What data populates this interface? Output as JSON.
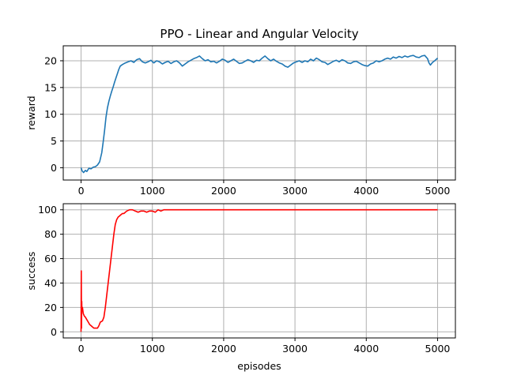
{
  "chart_data": [
    {
      "type": "line",
      "title": "PPO - Linear and Angular Velocity",
      "xlabel": "",
      "ylabel": "reward",
      "xlim": [
        -250,
        5250
      ],
      "ylim": [
        -2.3,
        22.8
      ],
      "xticks": [
        0,
        1000,
        2000,
        3000,
        4000,
        5000
      ],
      "yticks": [
        0,
        5,
        10,
        15,
        20
      ],
      "grid": true,
      "series": [
        {
          "color": "#1f77b4",
          "points": [
            [
              0,
              0
            ],
            [
              15,
              -0.6
            ],
            [
              35,
              -0.9
            ],
            [
              60,
              -0.5
            ],
            [
              80,
              -0.7
            ],
            [
              110,
              -0.1
            ],
            [
              140,
              -0.2
            ],
            [
              170,
              0.1
            ],
            [
              200,
              0.2
            ],
            [
              230,
              0.5
            ],
            [
              260,
              1.1
            ],
            [
              290,
              2.8
            ],
            [
              310,
              4.8
            ],
            [
              330,
              7.0
            ],
            [
              350,
              9.5
            ],
            [
              370,
              11.2
            ],
            [
              390,
              12.4
            ],
            [
              410,
              13.4
            ],
            [
              430,
              14.3
            ],
            [
              450,
              15.1
            ],
            [
              470,
              16.0
            ],
            [
              490,
              16.8
            ],
            [
              510,
              17.6
            ],
            [
              530,
              18.4
            ],
            [
              550,
              19.0
            ],
            [
              580,
              19.3
            ],
            [
              620,
              19.6
            ],
            [
              660,
              19.8
            ],
            [
              700,
              20.0
            ],
            [
              740,
              19.7
            ],
            [
              780,
              20.2
            ],
            [
              820,
              20.4
            ],
            [
              860,
              19.8
            ],
            [
              900,
              19.6
            ],
            [
              940,
              19.8
            ],
            [
              980,
              20.1
            ],
            [
              1020,
              19.6
            ],
            [
              1060,
              20.0
            ],
            [
              1100,
              19.8
            ],
            [
              1140,
              19.4
            ],
            [
              1180,
              19.7
            ],
            [
              1220,
              19.9
            ],
            [
              1260,
              19.5
            ],
            [
              1300,
              19.8
            ],
            [
              1340,
              20.0
            ],
            [
              1380,
              19.6
            ],
            [
              1420,
              19.0
            ],
            [
              1460,
              19.4
            ],
            [
              1500,
              19.8
            ],
            [
              1540,
              20.1
            ],
            [
              1580,
              20.4
            ],
            [
              1620,
              20.6
            ],
            [
              1660,
              20.9
            ],
            [
              1700,
              20.4
            ],
            [
              1740,
              20.0
            ],
            [
              1780,
              20.2
            ],
            [
              1820,
              19.8
            ],
            [
              1860,
              19.9
            ],
            [
              1900,
              19.6
            ],
            [
              1940,
              19.9
            ],
            [
              1980,
              20.3
            ],
            [
              2020,
              20.1
            ],
            [
              2060,
              19.7
            ],
            [
              2100,
              20.0
            ],
            [
              2140,
              20.3
            ],
            [
              2180,
              19.9
            ],
            [
              2220,
              19.5
            ],
            [
              2260,
              19.6
            ],
            [
              2300,
              19.9
            ],
            [
              2340,
              20.2
            ],
            [
              2380,
              20.0
            ],
            [
              2420,
              19.7
            ],
            [
              2460,
              20.1
            ],
            [
              2500,
              20.0
            ],
            [
              2540,
              20.5
            ],
            [
              2580,
              20.9
            ],
            [
              2620,
              20.4
            ],
            [
              2660,
              20.0
            ],
            [
              2700,
              20.3
            ],
            [
              2740,
              19.9
            ],
            [
              2780,
              19.6
            ],
            [
              2820,
              19.4
            ],
            [
              2860,
              19.0
            ],
            [
              2900,
              18.8
            ],
            [
              2940,
              19.2
            ],
            [
              2980,
              19.6
            ],
            [
              3020,
              19.8
            ],
            [
              3060,
              20.0
            ],
            [
              3100,
              19.7
            ],
            [
              3140,
              20.0
            ],
            [
              3180,
              19.8
            ],
            [
              3220,
              20.3
            ],
            [
              3260,
              20.0
            ],
            [
              3300,
              20.5
            ],
            [
              3340,
              20.2
            ],
            [
              3380,
              19.8
            ],
            [
              3420,
              19.7
            ],
            [
              3460,
              19.3
            ],
            [
              3500,
              19.6
            ],
            [
              3540,
              19.9
            ],
            [
              3580,
              20.1
            ],
            [
              3620,
              19.8
            ],
            [
              3660,
              20.2
            ],
            [
              3700,
              20.0
            ],
            [
              3740,
              19.6
            ],
            [
              3780,
              19.5
            ],
            [
              3820,
              19.8
            ],
            [
              3860,
              19.9
            ],
            [
              3900,
              19.6
            ],
            [
              3940,
              19.3
            ],
            [
              3980,
              19.1
            ],
            [
              4020,
              19.0
            ],
            [
              4060,
              19.4
            ],
            [
              4100,
              19.6
            ],
            [
              4140,
              20.0
            ],
            [
              4180,
              19.8
            ],
            [
              4220,
              20.0
            ],
            [
              4260,
              20.3
            ],
            [
              4300,
              20.5
            ],
            [
              4340,
              20.3
            ],
            [
              4380,
              20.7
            ],
            [
              4420,
              20.5
            ],
            [
              4460,
              20.8
            ],
            [
              4500,
              20.6
            ],
            [
              4540,
              20.9
            ],
            [
              4580,
              20.7
            ],
            [
              4620,
              20.9
            ],
            [
              4660,
              21.0
            ],
            [
              4700,
              20.7
            ],
            [
              4740,
              20.6
            ],
            [
              4780,
              20.9
            ],
            [
              4820,
              21.0
            ],
            [
              4860,
              20.4
            ],
            [
              4880,
              19.6
            ],
            [
              4900,
              19.2
            ],
            [
              4930,
              19.7
            ],
            [
              4960,
              20.0
            ],
            [
              5000,
              20.5
            ]
          ]
        }
      ]
    },
    {
      "type": "line",
      "title": "",
      "xlabel": "episodes",
      "ylabel": "success",
      "xlim": [
        -250,
        5250
      ],
      "ylim": [
        -5,
        105
      ],
      "xticks": [
        0,
        1000,
        2000,
        3000,
        4000,
        5000
      ],
      "yticks": [
        0,
        20,
        40,
        60,
        80,
        100
      ],
      "grid": true,
      "series": [
        {
          "color": "#ff0000",
          "points": [
            [
              0,
              0
            ],
            [
              3,
              50
            ],
            [
              6,
              3
            ],
            [
              9,
              25
            ],
            [
              12,
              18
            ],
            [
              20,
              20
            ],
            [
              30,
              15
            ],
            [
              45,
              13
            ],
            [
              60,
              12
            ],
            [
              80,
              10
            ],
            [
              100,
              8
            ],
            [
              120,
              6
            ],
            [
              140,
              5
            ],
            [
              160,
              4
            ],
            [
              180,
              3
            ],
            [
              200,
              3
            ],
            [
              230,
              3
            ],
            [
              250,
              5
            ],
            [
              270,
              8
            ],
            [
              300,
              9
            ],
            [
              320,
              12
            ],
            [
              340,
              20
            ],
            [
              360,
              30
            ],
            [
              380,
              40
            ],
            [
              400,
              50
            ],
            [
              420,
              60
            ],
            [
              440,
              70
            ],
            [
              460,
              80
            ],
            [
              480,
              88
            ],
            [
              500,
              92
            ],
            [
              520,
              94
            ],
            [
              540,
              95
            ],
            [
              560,
              96
            ],
            [
              580,
              97
            ],
            [
              600,
              97
            ],
            [
              640,
              99
            ],
            [
              680,
              100
            ],
            [
              720,
              100
            ],
            [
              760,
              99
            ],
            [
              800,
              98
            ],
            [
              840,
              99
            ],
            [
              880,
              99
            ],
            [
              920,
              98
            ],
            [
              960,
              99
            ],
            [
              1000,
              99
            ],
            [
              1040,
              98
            ],
            [
              1080,
              100
            ],
            [
              1120,
              99
            ],
            [
              1160,
              100
            ],
            [
              1200,
              100
            ],
            [
              1300,
              100
            ],
            [
              1500,
              100
            ],
            [
              2000,
              100
            ],
            [
              3000,
              100
            ],
            [
              4000,
              100
            ],
            [
              5000,
              100
            ]
          ]
        }
      ]
    }
  ]
}
